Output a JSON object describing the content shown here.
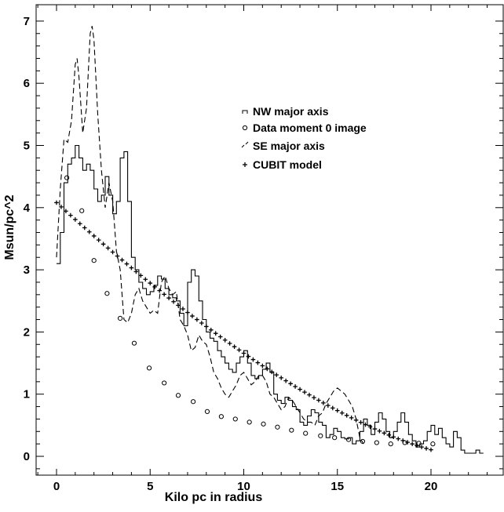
{
  "chart_data": {
    "type": "line",
    "title": "",
    "xlabel": "Kilo pc in radius",
    "ylabel": "Msun/pc^2",
    "xlim": [
      -1.2,
      24
    ],
    "ylim": [
      -0.3,
      7.3
    ],
    "xticks": [
      0,
      5,
      10,
      15,
      20
    ],
    "yticks": [
      0,
      1,
      2,
      3,
      4,
      5,
      6,
      7
    ],
    "grid": false,
    "legend_position": "upper-right",
    "series": [
      {
        "name": "NW major axis",
        "style": "histogram",
        "color": "#000000",
        "points": [
          [
            0.0,
            3.1
          ],
          [
            0.2,
            3.6
          ],
          [
            0.4,
            4.4
          ],
          [
            0.6,
            4.7
          ],
          [
            0.8,
            4.8
          ],
          [
            1.0,
            5.0
          ],
          [
            1.2,
            4.8
          ],
          [
            1.4,
            4.6
          ],
          [
            1.6,
            4.7
          ],
          [
            1.8,
            4.6
          ],
          [
            2.0,
            4.3
          ],
          [
            2.2,
            4.1
          ],
          [
            2.4,
            4.2
          ],
          [
            2.6,
            4.5
          ],
          [
            2.8,
            4.2
          ],
          [
            3.0,
            3.9
          ],
          [
            3.2,
            4.1
          ],
          [
            3.4,
            4.8
          ],
          [
            3.6,
            4.9
          ],
          [
            3.8,
            4.1
          ],
          [
            4.0,
            3.2
          ],
          [
            4.2,
            3.0
          ],
          [
            4.4,
            2.8
          ],
          [
            4.6,
            2.7
          ],
          [
            4.8,
            2.6
          ],
          [
            5.0,
            2.65
          ],
          [
            5.2,
            2.75
          ],
          [
            5.4,
            2.9
          ],
          [
            5.6,
            2.85
          ],
          [
            5.8,
            2.7
          ],
          [
            6.0,
            2.6
          ],
          [
            6.2,
            2.55
          ],
          [
            6.4,
            2.5
          ],
          [
            6.6,
            2.3
          ],
          [
            6.8,
            2.1
          ],
          [
            7.0,
            2.8
          ],
          [
            7.2,
            3.0
          ],
          [
            7.4,
            2.9
          ],
          [
            7.6,
            2.5
          ],
          [
            7.8,
            2.2
          ],
          [
            8.0,
            2.0
          ],
          [
            8.2,
            1.9
          ],
          [
            8.4,
            1.85
          ],
          [
            8.6,
            1.7
          ],
          [
            8.8,
            1.6
          ],
          [
            9.0,
            1.5
          ],
          [
            9.2,
            1.4
          ],
          [
            9.4,
            1.35
          ],
          [
            9.6,
            1.5
          ],
          [
            9.8,
            1.6
          ],
          [
            10.0,
            1.7
          ],
          [
            10.2,
            1.5
          ],
          [
            10.4,
            1.3
          ],
          [
            10.6,
            1.25
          ],
          [
            10.8,
            1.3
          ],
          [
            11.0,
            1.4
          ],
          [
            11.2,
            1.5
          ],
          [
            11.4,
            1.35
          ],
          [
            11.6,
            1.0
          ],
          [
            11.8,
            0.9
          ],
          [
            12.0,
            0.85
          ],
          [
            12.2,
            0.95
          ],
          [
            12.4,
            0.9
          ],
          [
            12.6,
            0.8
          ],
          [
            12.8,
            0.75
          ],
          [
            13.0,
            0.55
          ],
          [
            13.2,
            0.5
          ],
          [
            13.4,
            0.65
          ],
          [
            13.6,
            0.75
          ],
          [
            13.8,
            0.7
          ],
          [
            14.0,
            0.55
          ],
          [
            14.2,
            0.5
          ],
          [
            14.4,
            0.3
          ],
          [
            14.6,
            0.35
          ],
          [
            14.8,
            0.45
          ],
          [
            15.0,
            0.4
          ],
          [
            15.2,
            0.3
          ],
          [
            15.4,
            0.28
          ],
          [
            15.6,
            0.3
          ],
          [
            15.8,
            0.2
          ],
          [
            16.0,
            0.25
          ],
          [
            16.2,
            0.4
          ],
          [
            16.4,
            0.6
          ],
          [
            16.6,
            0.5
          ],
          [
            16.8,
            0.35
          ],
          [
            17.0,
            0.55
          ],
          [
            17.2,
            0.7
          ],
          [
            17.4,
            0.6
          ],
          [
            17.6,
            0.4
          ],
          [
            17.8,
            0.3
          ],
          [
            18.0,
            0.4
          ],
          [
            18.2,
            0.55
          ],
          [
            18.4,
            0.7
          ],
          [
            18.6,
            0.55
          ],
          [
            18.8,
            0.35
          ],
          [
            19.0,
            0.25
          ],
          [
            19.2,
            0.15
          ],
          [
            19.4,
            0.2
          ],
          [
            19.6,
            0.25
          ],
          [
            19.8,
            0.4
          ],
          [
            20.0,
            0.5
          ],
          [
            20.2,
            0.35
          ],
          [
            20.4,
            0.45
          ],
          [
            20.6,
            0.3
          ],
          [
            20.8,
            0.2
          ],
          [
            21.0,
            0.15
          ],
          [
            21.2,
            0.4
          ],
          [
            21.4,
            0.3
          ],
          [
            21.6,
            0.1
          ],
          [
            21.8,
            0.05
          ],
          [
            22.0,
            0.05
          ],
          [
            22.2,
            0.05
          ],
          [
            22.4,
            0.1
          ],
          [
            22.6,
            0.05
          ]
        ]
      },
      {
        "name": "SE major axis",
        "style": "dashed",
        "color": "#000000",
        "points": [
          [
            0.0,
            3.2
          ],
          [
            0.2,
            4.3
          ],
          [
            0.4,
            5.1
          ],
          [
            0.6,
            5.05
          ],
          [
            0.8,
            5.4
          ],
          [
            1.0,
            6.3
          ],
          [
            1.1,
            6.4
          ],
          [
            1.2,
            6.1
          ],
          [
            1.4,
            5.2
          ],
          [
            1.6,
            5.6
          ],
          [
            1.8,
            6.8
          ],
          [
            1.9,
            6.92
          ],
          [
            2.0,
            6.7
          ],
          [
            2.2,
            5.5
          ],
          [
            2.4,
            4.6
          ],
          [
            2.6,
            4.0
          ],
          [
            2.8,
            4.4
          ],
          [
            3.0,
            4.1
          ],
          [
            3.2,
            3.3
          ],
          [
            3.4,
            3.0
          ],
          [
            3.6,
            2.2
          ],
          [
            3.8,
            2.15
          ],
          [
            4.0,
            2.3
          ],
          [
            4.2,
            2.6
          ],
          [
            4.4,
            2.7
          ],
          [
            4.6,
            2.5
          ],
          [
            4.8,
            2.4
          ],
          [
            5.0,
            2.3
          ],
          [
            5.2,
            2.35
          ],
          [
            5.4,
            2.3
          ],
          [
            5.6,
            2.8
          ],
          [
            5.8,
            2.9
          ],
          [
            6.0,
            2.7
          ],
          [
            6.2,
            2.6
          ],
          [
            6.4,
            2.65
          ],
          [
            6.6,
            2.2
          ],
          [
            6.8,
            2.1
          ],
          [
            7.0,
            1.95
          ],
          [
            7.2,
            1.7
          ],
          [
            7.4,
            1.75
          ],
          [
            7.6,
            1.95
          ],
          [
            7.8,
            1.85
          ],
          [
            8.0,
            1.8
          ],
          [
            8.2,
            1.6
          ],
          [
            8.4,
            1.35
          ],
          [
            8.6,
            1.25
          ],
          [
            8.8,
            1.1
          ],
          [
            9.0,
            1.0
          ],
          [
            9.2,
            0.95
          ],
          [
            9.4,
            1.05
          ],
          [
            9.6,
            1.15
          ],
          [
            9.8,
            1.3
          ],
          [
            10.0,
            1.35
          ],
          [
            10.2,
            1.25
          ],
          [
            10.4,
            1.15
          ],
          [
            10.6,
            1.2
          ],
          [
            10.8,
            1.3
          ],
          [
            11.0,
            1.3
          ],
          [
            11.2,
            1.2
          ],
          [
            11.4,
            1.0
          ],
          [
            11.6,
            0.95
          ],
          [
            11.8,
            0.85
          ],
          [
            12.0,
            0.75
          ],
          [
            12.2,
            0.8
          ],
          [
            12.4,
            0.95
          ],
          [
            12.6,
            0.9
          ],
          [
            12.8,
            0.8
          ],
          [
            13.0,
            0.7
          ],
          [
            13.2,
            0.6
          ],
          [
            13.4,
            0.55
          ],
          [
            13.6,
            0.55
          ],
          [
            13.8,
            0.5
          ],
          [
            14.0,
            0.65
          ],
          [
            14.2,
            0.7
          ],
          [
            14.4,
            0.85
          ],
          [
            14.6,
            0.95
          ],
          [
            14.8,
            1.05
          ],
          [
            15.0,
            1.1
          ],
          [
            15.2,
            1.05
          ],
          [
            15.4,
            1.0
          ],
          [
            15.6,
            0.9
          ],
          [
            15.8,
            0.8
          ],
          [
            16.0,
            0.6
          ],
          [
            16.2,
            0.3
          ],
          [
            16.4,
            0.2
          ]
        ]
      },
      {
        "name": "Data moment 0 image",
        "style": "circles",
        "color": "#000000",
        "points": [
          [
            0.55,
            4.48
          ],
          [
            1.35,
            3.95
          ],
          [
            2.0,
            3.15
          ],
          [
            2.7,
            2.62
          ],
          [
            3.4,
            2.22
          ],
          [
            4.15,
            1.82
          ],
          [
            4.95,
            1.42
          ],
          [
            5.75,
            1.18
          ],
          [
            6.5,
            0.98
          ],
          [
            7.3,
            0.88
          ],
          [
            8.05,
            0.72
          ],
          [
            8.8,
            0.64
          ],
          [
            9.55,
            0.6
          ],
          [
            10.3,
            0.55
          ],
          [
            11.05,
            0.52
          ],
          [
            11.8,
            0.47
          ],
          [
            12.55,
            0.42
          ],
          [
            13.3,
            0.37
          ],
          [
            14.1,
            0.33
          ],
          [
            14.85,
            0.3
          ],
          [
            15.6,
            0.27
          ],
          [
            16.35,
            0.24
          ],
          [
            17.1,
            0.22
          ],
          [
            17.85,
            0.2
          ],
          [
            18.6,
            0.22
          ],
          [
            19.35,
            0.21
          ],
          [
            20.1,
            0.2
          ]
        ]
      },
      {
        "name": "CUBIT model",
        "style": "plus",
        "color": "#000000",
        "points": []
      }
    ]
  }
}
